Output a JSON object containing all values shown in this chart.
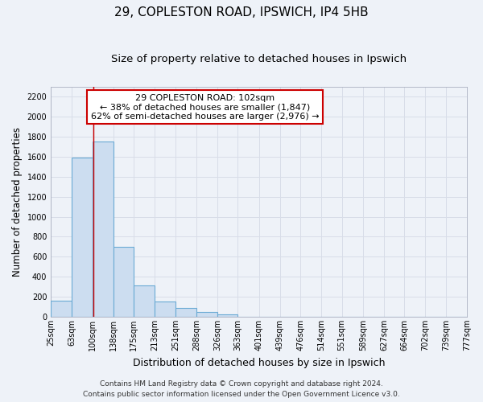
{
  "title1": "29, COPLESTON ROAD, IPSWICH, IP4 5HB",
  "title2": "Size of property relative to detached houses in Ipswich",
  "xlabel": "Distribution of detached houses by size in Ipswich",
  "ylabel": "Number of detached properties",
  "bar_heights": [
    160,
    1590,
    1750,
    700,
    315,
    155,
    85,
    45,
    20,
    0,
    0,
    0,
    0,
    0,
    0,
    0,
    0,
    0,
    0,
    0
  ],
  "bin_labels": [
    "25sqm",
    "63sqm",
    "100sqm",
    "138sqm",
    "175sqm",
    "213sqm",
    "251sqm",
    "288sqm",
    "326sqm",
    "363sqm",
    "401sqm",
    "439sqm",
    "476sqm",
    "514sqm",
    "551sqm",
    "589sqm",
    "627sqm",
    "664sqm",
    "702sqm",
    "739sqm",
    "777sqm"
  ],
  "bin_edges": [
    25,
    63,
    100,
    138,
    175,
    213,
    251,
    288,
    326,
    363,
    401,
    439,
    476,
    514,
    551,
    589,
    627,
    664,
    702,
    739,
    777
  ],
  "bar_color": "#ccddf0",
  "bar_edge_color": "#6aaad4",
  "red_line_x": 102,
  "annotation_line1": "29 COPLESTON ROAD: 102sqm",
  "annotation_line2": "← 38% of detached houses are smaller (1,847)",
  "annotation_line3": "62% of semi-detached houses are larger (2,976) →",
  "annotation_box_color": "#ffffff",
  "annotation_box_edge_color": "#cc0000",
  "ylim": [
    0,
    2300
  ],
  "yticks": [
    0,
    200,
    400,
    600,
    800,
    1000,
    1200,
    1400,
    1600,
    1800,
    2000,
    2200
  ],
  "footer1": "Contains HM Land Registry data © Crown copyright and database right 2024.",
  "footer2": "Contains public sector information licensed under the Open Government Licence v3.0.",
  "background_color": "#eef2f8",
  "grid_color": "#d8dde8",
  "title1_fontsize": 11,
  "title2_fontsize": 9.5,
  "ylabel_fontsize": 8.5,
  "xlabel_fontsize": 9,
  "tick_fontsize": 7,
  "annotation_fontsize": 8,
  "footer_fontsize": 6.5
}
